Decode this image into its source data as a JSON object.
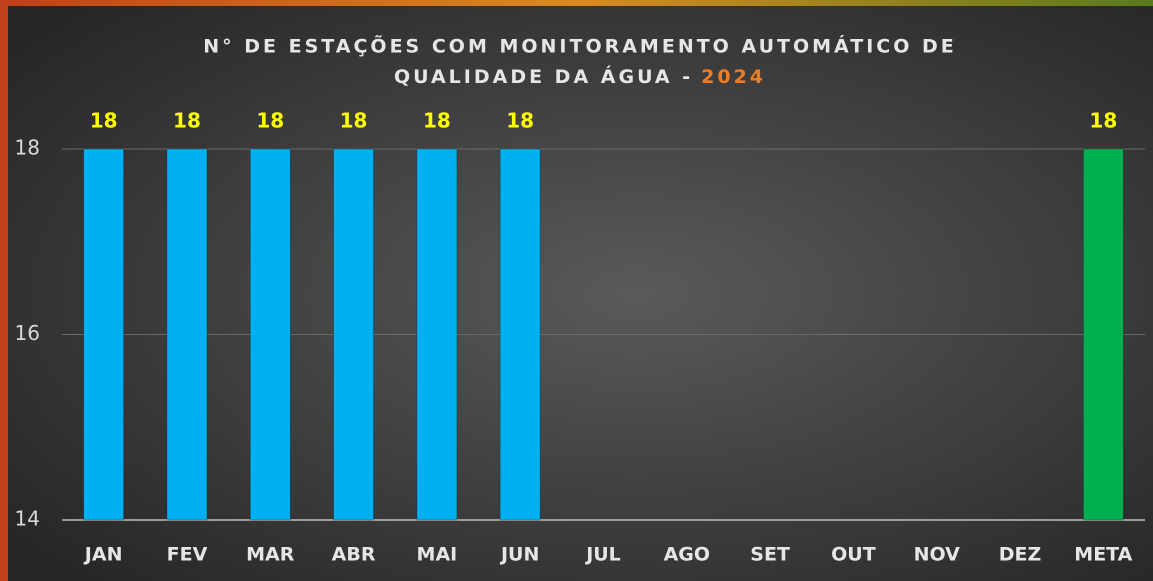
{
  "chart_data": {
    "type": "bar",
    "title_lines": [
      "N° DE ESTAÇÕES COM MONITORAMENTO AUTOMÁTICO DE",
      "QUALIDADE DA ÁGUA -"
    ],
    "title_highlight": "2024",
    "categories": [
      "JAN",
      "FEV",
      "MAR",
      "ABR",
      "MAI",
      "JUN",
      "JUL",
      "AGO",
      "SET",
      "OUT",
      "NOV",
      "DEZ",
      "META"
    ],
    "values": [
      18,
      18,
      18,
      18,
      18,
      18,
      null,
      null,
      null,
      null,
      null,
      null,
      18
    ],
    "colors": [
      "#00b0f0",
      "#00b0f0",
      "#00b0f0",
      "#00b0f0",
      "#00b0f0",
      "#00b0f0",
      "#00b0f0",
      "#00b0f0",
      "#00b0f0",
      "#00b0f0",
      "#00b0f0",
      "#00b0f0",
      "#00b050"
    ],
    "ylim": [
      14,
      18
    ],
    "yticks": [
      14,
      16,
      18
    ],
    "grid": true
  }
}
